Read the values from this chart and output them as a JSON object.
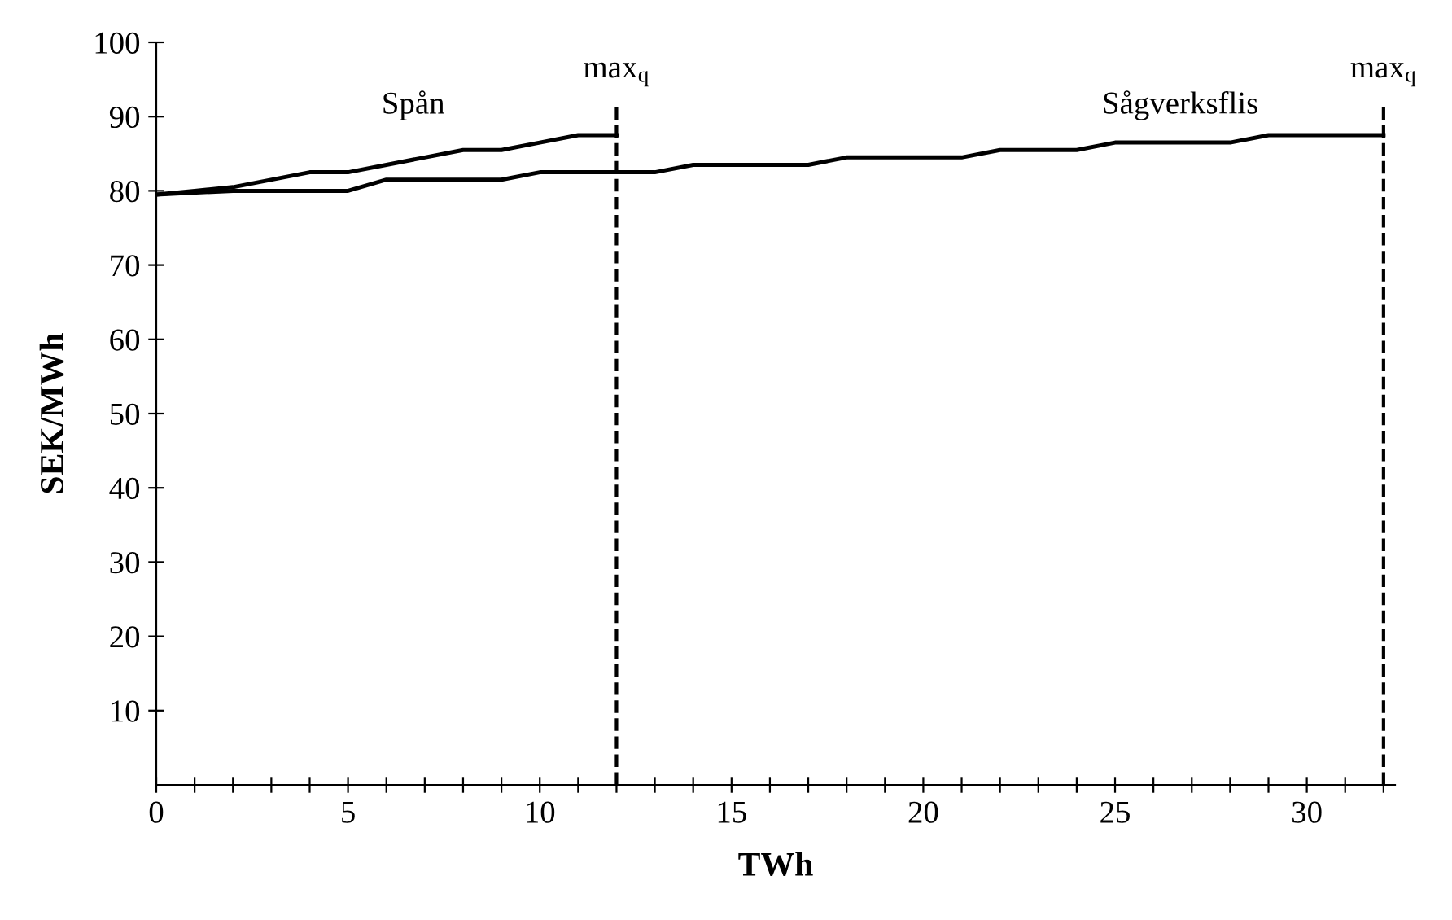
{
  "chart_data": {
    "type": "line",
    "xlabel": "TWh",
    "ylabel": "SEK/MWh",
    "xlim": [
      0,
      32.3
    ],
    "ylim": [
      0,
      100
    ],
    "xticks": [
      0,
      {
        "value": 1,
        "label": null
      },
      {
        "value": 2,
        "label": null
      },
      {
        "value": 3,
        "label": null
      },
      {
        "value": 4,
        "label": null
      },
      5,
      {
        "value": 6,
        "label": null
      },
      {
        "value": 7,
        "label": null
      },
      {
        "value": 8,
        "label": null
      },
      {
        "value": 9,
        "label": null
      },
      10,
      {
        "value": 11,
        "label": null
      },
      {
        "value": 12,
        "label": null
      },
      {
        "value": 13,
        "label": null
      },
      {
        "value": 14,
        "label": null
      },
      15,
      {
        "value": 16,
        "label": null
      },
      {
        "value": 17,
        "label": null
      },
      {
        "value": 18,
        "label": null
      },
      {
        "value": 19,
        "label": null
      },
      20,
      {
        "value": 21,
        "label": null
      },
      {
        "value": 22,
        "label": null
      },
      {
        "value": 23,
        "label": null
      },
      {
        "value": 24,
        "label": null
      },
      25,
      {
        "value": 26,
        "label": null
      },
      {
        "value": 27,
        "label": null
      },
      {
        "value": 28,
        "label": null
      },
      {
        "value": 29,
        "label": null
      },
      30,
      {
        "value": 31,
        "label": null
      },
      {
        "value": 32,
        "label": null
      }
    ],
    "yticks": [
      10,
      20,
      30,
      40,
      50,
      60,
      70,
      80,
      90,
      100
    ],
    "grid": false,
    "legend": false,
    "marker": "none",
    "line_style": "solid",
    "series": [
      {
        "name": "Spån",
        "color": "#000000",
        "x": [
          0,
          1,
          2,
          4,
          5,
          6,
          7,
          8,
          9,
          10,
          11,
          12
        ],
        "values": [
          79.5,
          80,
          80.5,
          82.5,
          82.5,
          83.5,
          84.5,
          85.5,
          85.5,
          86.5,
          87.5,
          87.5
        ]
      },
      {
        "name": "Sågverksflis",
        "color": "#000000",
        "x": [
          0,
          2,
          5,
          6,
          9,
          10,
          13,
          14,
          17,
          18,
          21,
          22,
          24,
          25,
          28,
          29,
          32
        ],
        "values": [
          79.5,
          80,
          80,
          81.5,
          81.5,
          82.5,
          82.5,
          83.5,
          83.5,
          84.5,
          84.5,
          85.5,
          85.5,
          86.5,
          86.5,
          87.5,
          87.5
        ]
      }
    ],
    "ref_lines": [
      {
        "axis": "x",
        "value": 12,
        "label": "max$_{q}$",
        "line_style": "dashed"
      },
      {
        "axis": "x",
        "value": 32,
        "label": "max$_{q}$",
        "line_style": "dashed"
      }
    ]
  }
}
